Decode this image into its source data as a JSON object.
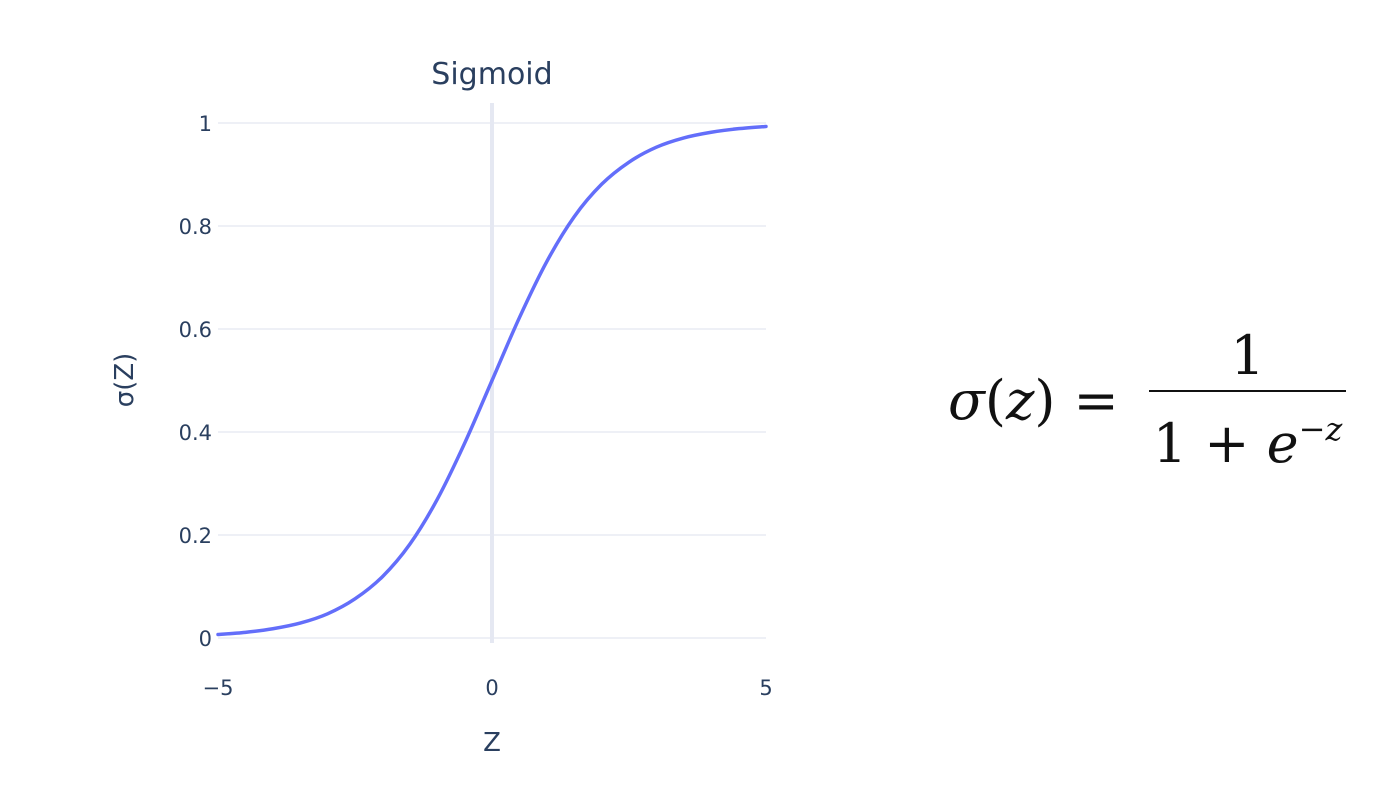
{
  "chart_data": {
    "type": "line",
    "title": "Sigmoid",
    "xlabel": "Z",
    "ylabel": "σ(Z)",
    "xlim": [
      -5,
      5
    ],
    "ylim": [
      0,
      1
    ],
    "x_ticks": [
      -5,
      0,
      5
    ],
    "x_tick_labels": [
      "−5",
      "0",
      "5"
    ],
    "y_ticks": [
      0,
      0.2,
      0.4,
      0.6,
      0.8,
      1
    ],
    "y_tick_labels": [
      "0",
      "0.2",
      "0.4",
      "0.6",
      "0.8",
      "1"
    ],
    "grid": true,
    "zero_line_x": 0,
    "line_color": "#636efa",
    "series": [
      {
        "x": [
          -5,
          -4.5,
          -4,
          -3.5,
          -3,
          -2.5,
          -2,
          -1.5,
          -1,
          -0.5,
          0,
          0.5,
          1,
          1.5,
          2,
          2.5,
          3,
          3.5,
          4,
          4.5,
          5
        ],
        "values": [
          0.0067,
          0.011,
          0.018,
          0.029,
          0.047,
          0.076,
          0.119,
          0.182,
          0.269,
          0.378,
          0.5,
          0.622,
          0.731,
          0.818,
          0.881,
          0.924,
          0.953,
          0.971,
          0.982,
          0.989,
          0.9933
        ]
      }
    ]
  },
  "formula": {
    "sigma": "σ",
    "open_paren": "(",
    "variable": "z",
    "close_paren": ")",
    "equals": "=",
    "numerator": "1",
    "denominator_base": "1 + ",
    "denominator_e": "e",
    "exponent": "−z"
  }
}
